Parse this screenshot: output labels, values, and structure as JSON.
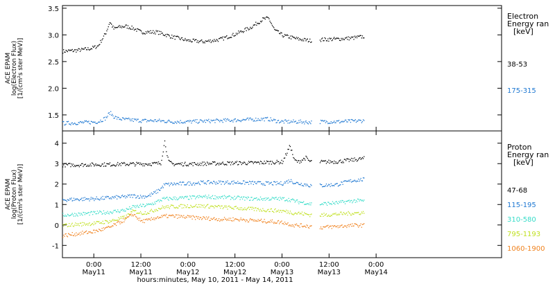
{
  "figure": {
    "xlabel": "hours:minutes, May 10, 2011 - May 14, 2011",
    "x_range_hours": [
      -8,
      104
    ],
    "x_ticks": [
      {
        "hour": 0,
        "time": "0:00",
        "day": "May11"
      },
      {
        "hour": 12,
        "time": "12:00",
        "day": "May11"
      },
      {
        "hour": 24,
        "time": "0:00",
        "day": "May12"
      },
      {
        "hour": 36,
        "time": "12:00",
        "day": "May12"
      },
      {
        "hour": 48,
        "time": "0:00",
        "day": "May13"
      },
      {
        "hour": 60,
        "time": "12:00",
        "day": "May13"
      },
      {
        "hour": 72,
        "time": "0:00",
        "day": "May14"
      }
    ],
    "data_gap_hours": [
      55.5,
      57.5
    ]
  },
  "chart_data": [
    {
      "type": "scatter",
      "panel": "electron",
      "ylabel": [
        "ACE EPAM",
        "log(Electron Flux)",
        "[1/(cm²s ster MeV)]"
      ],
      "ylim": [
        1.2,
        3.55
      ],
      "yticks": [
        1.5,
        2.0,
        2.5,
        3.0,
        3.5
      ],
      "ytick_labels": [
        "1.5",
        "2.0",
        "2.5",
        "3.0",
        "3.5"
      ],
      "legend": {
        "title": [
          "Electron",
          "Energy ran",
          "[keV]"
        ]
      },
      "x": [
        -8,
        -4,
        -1,
        1,
        3,
        4,
        5,
        6,
        8,
        10,
        12,
        16,
        20,
        24,
        28,
        32,
        36,
        40,
        43,
        44.5,
        46,
        48,
        52,
        55,
        58,
        62,
        66,
        69
      ],
      "series": [
        {
          "name": "38-53",
          "color": "#000000",
          "values": [
            2.7,
            2.72,
            2.75,
            2.8,
            3.05,
            3.25,
            3.12,
            3.15,
            3.17,
            3.13,
            3.06,
            3.06,
            2.97,
            2.9,
            2.88,
            2.92,
            3.02,
            3.15,
            3.3,
            3.32,
            3.1,
            3.0,
            2.93,
            2.9,
            2.92,
            2.93,
            2.95,
            2.98
          ]
        },
        {
          "name": "175-315",
          "color": "#1e78d2",
          "values": [
            1.35,
            1.36,
            1.37,
            1.38,
            1.45,
            1.55,
            1.48,
            1.44,
            1.42,
            1.41,
            1.4,
            1.4,
            1.38,
            1.38,
            1.39,
            1.4,
            1.41,
            1.42,
            1.43,
            1.43,
            1.4,
            1.38,
            1.38,
            1.37,
            1.38,
            1.38,
            1.39,
            1.4
          ]
        }
      ]
    },
    {
      "type": "scatter",
      "panel": "proton",
      "ylabel": [
        "ACE EPAM",
        "log(Proton Flux)",
        "[1/(cm²s ster MeV)]"
      ],
      "ylim": [
        -1.6,
        4.6
      ],
      "yticks": [
        -1,
        0,
        1,
        2,
        3,
        4
      ],
      "ytick_labels": [
        "-1",
        "0",
        "1",
        "2",
        "3",
        "4"
      ],
      "legend": {
        "title": [
          "Proton",
          "Energy ran",
          "[keV]"
        ]
      },
      "x": [
        -8,
        -4,
        0,
        4,
        8,
        10,
        12,
        14,
        16,
        17,
        18,
        19,
        20,
        24,
        28,
        32,
        36,
        40,
        44,
        48,
        50,
        51,
        52,
        54,
        55,
        58,
        62,
        66,
        69
      ],
      "series": [
        {
          "name": "47-68",
          "color": "#000000",
          "values": [
            2.95,
            2.96,
            2.97,
            2.98,
            3.0,
            3.0,
            3.0,
            3.01,
            3.02,
            3.05,
            4.1,
            3.1,
            3.0,
            3.0,
            3.02,
            3.03,
            3.05,
            3.05,
            3.08,
            3.1,
            3.9,
            3.2,
            3.1,
            3.3,
            3.12,
            3.1,
            3.12,
            3.2,
            3.28
          ]
        },
        {
          "name": "115-195",
          "color": "#1e78d2",
          "values": [
            1.25,
            1.28,
            1.3,
            1.35,
            1.4,
            1.45,
            1.4,
            1.45,
            1.65,
            1.8,
            2.0,
            2.0,
            2.02,
            2.05,
            2.1,
            2.1,
            2.1,
            2.08,
            2.05,
            2.05,
            2.2,
            2.1,
            2.05,
            2.0,
            1.95,
            1.95,
            2.0,
            2.2,
            2.25
          ]
        },
        {
          "name": "310-580",
          "color": "#36dcc8",
          "values": [
            0.5,
            0.55,
            0.6,
            0.65,
            0.75,
            0.9,
            0.95,
            1.0,
            1.15,
            1.25,
            1.3,
            1.3,
            1.32,
            1.35,
            1.4,
            1.38,
            1.35,
            1.3,
            1.3,
            1.3,
            1.25,
            1.2,
            1.15,
            1.1,
            1.05,
            1.05,
            1.1,
            1.2,
            1.2
          ]
        },
        {
          "name": "795-1193",
          "color": "#c0e020",
          "values": [
            0.0,
            0.05,
            0.1,
            0.2,
            0.4,
            0.7,
            0.6,
            0.65,
            0.8,
            0.85,
            0.9,
            0.9,
            0.92,
            0.95,
            0.95,
            0.9,
            0.85,
            0.8,
            0.75,
            0.7,
            0.65,
            0.6,
            0.6,
            0.55,
            0.52,
            0.5,
            0.55,
            0.6,
            0.62
          ]
        },
        {
          "name": "1060-1900",
          "color": "#f0821e",
          "values": [
            -0.5,
            -0.4,
            -0.3,
            -0.1,
            0.3,
            0.55,
            0.2,
            0.25,
            0.4,
            0.4,
            0.45,
            0.45,
            0.45,
            0.4,
            0.35,
            0.3,
            0.3,
            0.25,
            0.2,
            0.15,
            0.05,
            0.0,
            0.0,
            -0.02,
            -0.05,
            -0.1,
            -0.05,
            0.0,
            0.0
          ]
        }
      ]
    }
  ]
}
